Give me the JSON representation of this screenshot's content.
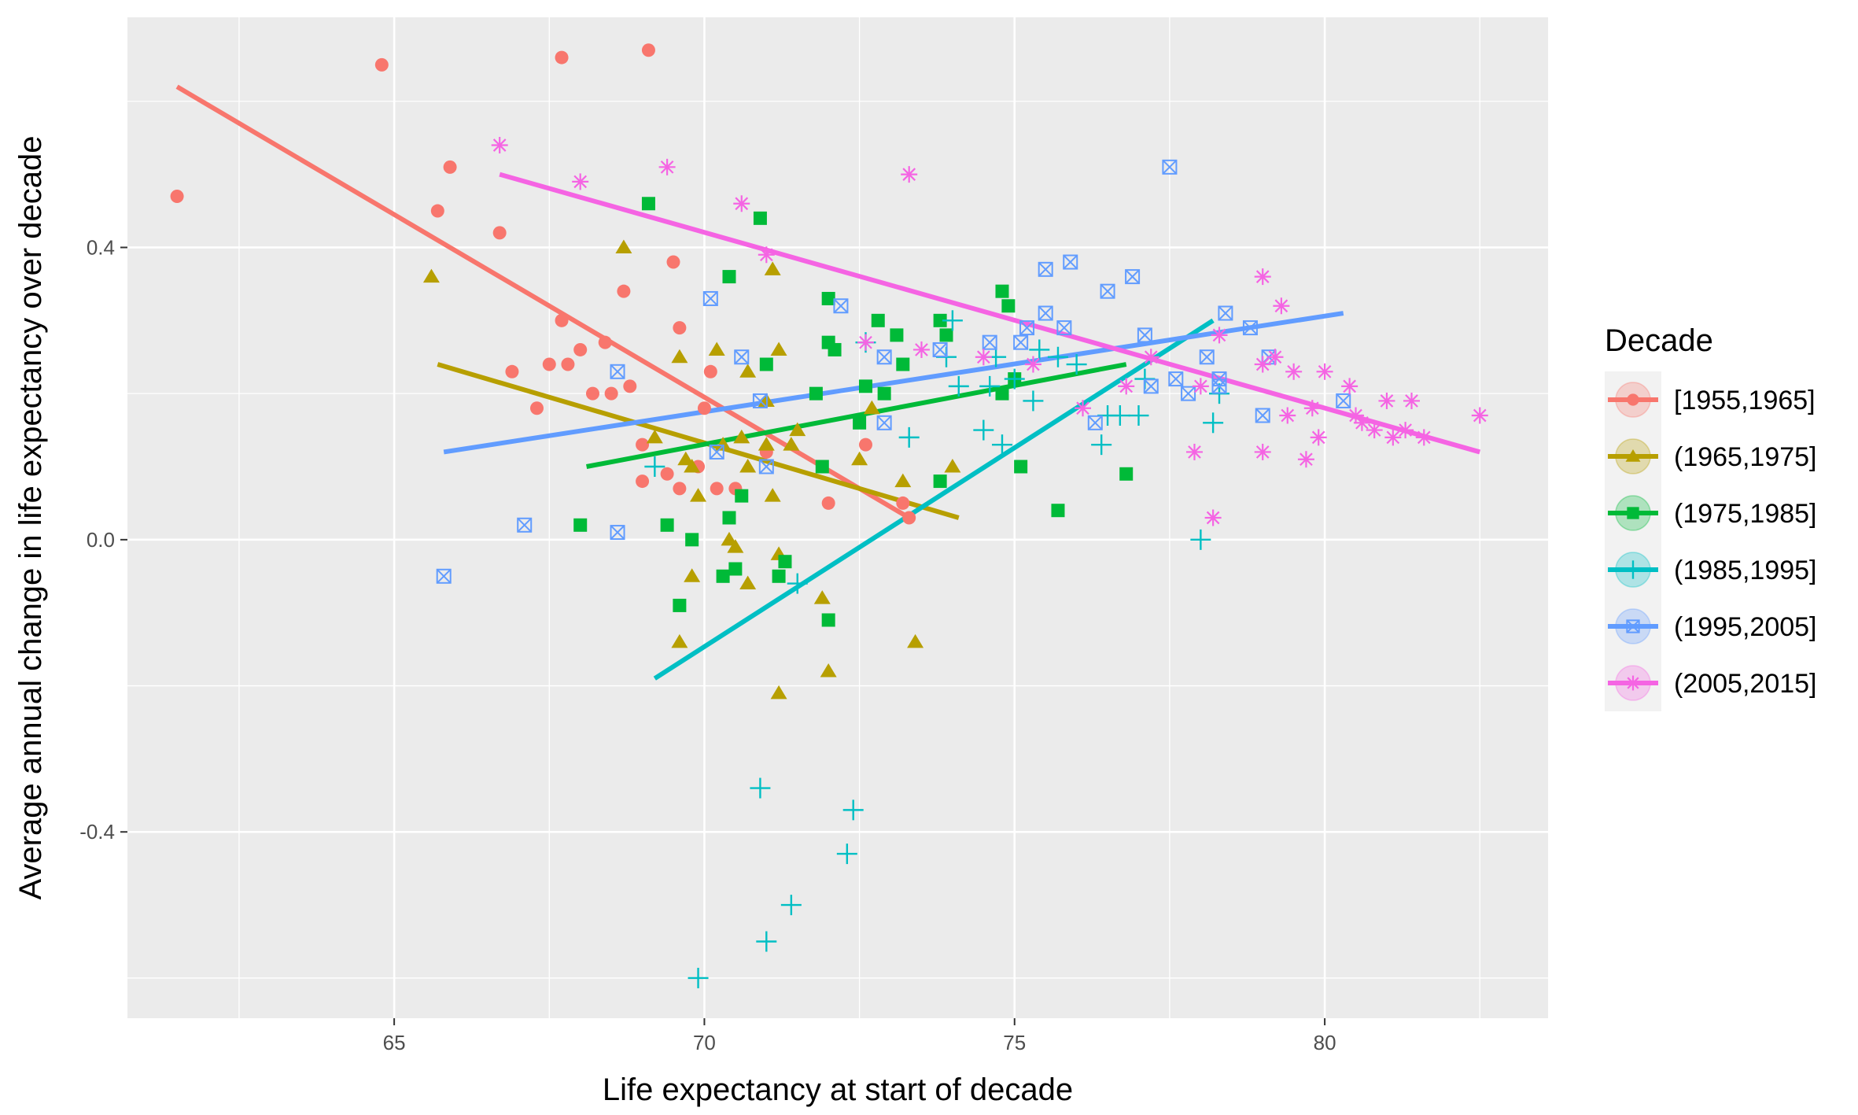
{
  "chart_data": {
    "type": "scatter",
    "xlabel": "Life expectancy at start of decade",
    "ylabel": "Average annual change in life expectancy over decade",
    "xlim": [
      60.7,
      83.6
    ],
    "ylim": [
      -0.655,
      0.715
    ],
    "x_ticks": [
      65,
      70,
      75,
      80
    ],
    "x_tick_labels": [
      "65",
      "70",
      "75",
      "80"
    ],
    "y_ticks": [
      -0.4,
      0.0,
      0.4
    ],
    "y_tick_labels": [
      "-0.4",
      "0.0",
      "0.4"
    ],
    "grid": true,
    "legend": {
      "title": "Decade",
      "position": "right"
    },
    "series": [
      {
        "name": "[1955,1965]",
        "color": "#F8766D",
        "marker": "circle",
        "trend": [
          [
            61.5,
            0.62
          ],
          [
            73.3,
            0.03
          ]
        ],
        "points": [
          [
            61.5,
            0.47
          ],
          [
            64.8,
            0.65
          ],
          [
            65.7,
            0.45
          ],
          [
            65.9,
            0.51
          ],
          [
            66.7,
            0.42
          ],
          [
            66.9,
            0.23
          ],
          [
            67.3,
            0.18
          ],
          [
            67.5,
            0.24
          ],
          [
            67.7,
            0.3
          ],
          [
            67.8,
            0.24
          ],
          [
            68.0,
            0.26
          ],
          [
            68.2,
            0.2
          ],
          [
            68.4,
            0.27
          ],
          [
            68.5,
            0.2
          ],
          [
            68.7,
            0.34
          ],
          [
            68.8,
            0.21
          ],
          [
            69.0,
            0.13
          ],
          [
            69.0,
            0.08
          ],
          [
            69.1,
            0.67
          ],
          [
            69.4,
            0.09
          ],
          [
            69.5,
            0.38
          ],
          [
            69.6,
            0.29
          ],
          [
            69.6,
            0.07
          ],
          [
            69.9,
            0.1
          ],
          [
            70.0,
            0.18
          ],
          [
            70.1,
            0.23
          ],
          [
            70.2,
            0.07
          ],
          [
            70.5,
            0.07
          ],
          [
            71.0,
            0.12
          ],
          [
            72.0,
            0.05
          ],
          [
            72.6,
            0.13
          ],
          [
            73.2,
            0.05
          ],
          [
            73.3,
            0.03
          ],
          [
            67.7,
            0.66
          ]
        ]
      },
      {
        "name": "(1965,1975]",
        "color": "#B79F00",
        "marker": "triangle",
        "trend": [
          [
            65.7,
            0.24
          ],
          [
            74.1,
            0.03
          ]
        ],
        "points": [
          [
            65.6,
            0.36
          ],
          [
            68.7,
            0.4
          ],
          [
            69.2,
            0.14
          ],
          [
            69.6,
            0.25
          ],
          [
            69.7,
            0.11
          ],
          [
            69.8,
            0.1
          ],
          [
            69.9,
            0.06
          ],
          [
            70.2,
            0.26
          ],
          [
            70.3,
            0.13
          ],
          [
            70.4,
            0.0
          ],
          [
            70.5,
            -0.01
          ],
          [
            70.6,
            0.14
          ],
          [
            70.7,
            0.1
          ],
          [
            70.7,
            0.23
          ],
          [
            70.7,
            -0.06
          ],
          [
            71.0,
            0.13
          ],
          [
            71.0,
            0.19
          ],
          [
            71.1,
            0.37
          ],
          [
            71.1,
            0.06
          ],
          [
            71.2,
            0.26
          ],
          [
            71.2,
            -0.21
          ],
          [
            71.2,
            -0.02
          ],
          [
            71.4,
            0.13
          ],
          [
            71.5,
            0.15
          ],
          [
            71.9,
            -0.08
          ],
          [
            72.0,
            -0.18
          ],
          [
            72.5,
            0.11
          ],
          [
            72.7,
            0.18
          ],
          [
            73.2,
            0.08
          ],
          [
            73.4,
            -0.14
          ],
          [
            74.0,
            0.1
          ],
          [
            69.6,
            -0.14
          ],
          [
            69.8,
            -0.05
          ]
        ]
      },
      {
        "name": "(1975,1985]",
        "color": "#00BA38",
        "marker": "square",
        "trend": [
          [
            68.1,
            0.1
          ],
          [
            76.8,
            0.24
          ]
        ],
        "points": [
          [
            68.0,
            0.02
          ],
          [
            69.1,
            0.46
          ],
          [
            69.4,
            0.02
          ],
          [
            69.6,
            -0.09
          ],
          [
            69.8,
            0.0
          ],
          [
            70.3,
            -0.05
          ],
          [
            70.4,
            0.36
          ],
          [
            70.4,
            0.03
          ],
          [
            70.6,
            0.06
          ],
          [
            70.9,
            0.44
          ],
          [
            71.0,
            0.24
          ],
          [
            71.2,
            -0.05
          ],
          [
            71.3,
            -0.03
          ],
          [
            71.8,
            0.2
          ],
          [
            71.9,
            0.1
          ],
          [
            72.0,
            0.27
          ],
          [
            72.0,
            0.33
          ],
          [
            72.0,
            -0.11
          ],
          [
            72.1,
            0.26
          ],
          [
            72.5,
            0.16
          ],
          [
            72.6,
            0.21
          ],
          [
            72.8,
            0.3
          ],
          [
            72.9,
            0.2
          ],
          [
            73.1,
            0.28
          ],
          [
            73.2,
            0.24
          ],
          [
            73.8,
            0.3
          ],
          [
            73.8,
            0.08
          ],
          [
            73.9,
            0.28
          ],
          [
            74.8,
            0.34
          ],
          [
            74.8,
            0.2
          ],
          [
            74.9,
            0.32
          ],
          [
            75.0,
            0.22
          ],
          [
            75.1,
            0.1
          ],
          [
            75.7,
            0.04
          ],
          [
            76.8,
            0.09
          ],
          [
            70.5,
            -0.04
          ]
        ]
      },
      {
        "name": "(1985,1995]",
        "color": "#00BFC4",
        "marker": "plus",
        "trend": [
          [
            69.2,
            -0.19
          ],
          [
            78.2,
            0.3
          ]
        ],
        "points": [
          [
            69.2,
            0.1
          ],
          [
            69.9,
            -0.6
          ],
          [
            70.9,
            -0.34
          ],
          [
            71.0,
            -0.55
          ],
          [
            71.4,
            -0.5
          ],
          [
            71.5,
            -0.06
          ],
          [
            72.3,
            -0.43
          ],
          [
            72.4,
            -0.37
          ],
          [
            72.6,
            0.27
          ],
          [
            73.3,
            0.14
          ],
          [
            73.9,
            0.25
          ],
          [
            74.0,
            0.3
          ],
          [
            74.1,
            0.21
          ],
          [
            74.5,
            0.15
          ],
          [
            74.6,
            0.21
          ],
          [
            74.7,
            0.25
          ],
          [
            74.8,
            0.13
          ],
          [
            75.0,
            0.22
          ],
          [
            75.3,
            0.19
          ],
          [
            75.4,
            0.26
          ],
          [
            75.7,
            0.25
          ],
          [
            76.0,
            0.24
          ],
          [
            76.4,
            0.13
          ],
          [
            76.5,
            0.17
          ],
          [
            76.7,
            0.17
          ],
          [
            77.0,
            0.17
          ],
          [
            77.1,
            0.22
          ],
          [
            78.0,
            0.0
          ],
          [
            78.2,
            0.16
          ],
          [
            78.3,
            0.2
          ]
        ]
      },
      {
        "name": "(1995,2005]",
        "color": "#619CFF",
        "marker": "square-x",
        "trend": [
          [
            65.8,
            0.12
          ],
          [
            80.3,
            0.31
          ]
        ],
        "points": [
          [
            65.8,
            -0.05
          ],
          [
            67.1,
            0.02
          ],
          [
            68.6,
            0.01
          ],
          [
            68.6,
            0.23
          ],
          [
            70.1,
            0.33
          ],
          [
            70.2,
            0.12
          ],
          [
            70.6,
            0.25
          ],
          [
            70.9,
            0.19
          ],
          [
            71.0,
            0.1
          ],
          [
            72.2,
            0.32
          ],
          [
            72.9,
            0.16
          ],
          [
            72.9,
            0.25
          ],
          [
            73.8,
            0.26
          ],
          [
            74.6,
            0.27
          ],
          [
            75.1,
            0.27
          ],
          [
            75.2,
            0.29
          ],
          [
            75.5,
            0.37
          ],
          [
            75.5,
            0.31
          ],
          [
            75.8,
            0.29
          ],
          [
            75.9,
            0.38
          ],
          [
            76.3,
            0.16
          ],
          [
            76.5,
            0.34
          ],
          [
            76.9,
            0.36
          ],
          [
            77.1,
            0.28
          ],
          [
            77.2,
            0.21
          ],
          [
            77.5,
            0.51
          ],
          [
            77.6,
            0.22
          ],
          [
            77.8,
            0.2
          ],
          [
            78.1,
            0.25
          ],
          [
            78.3,
            0.22
          ],
          [
            78.4,
            0.31
          ],
          [
            78.8,
            0.29
          ],
          [
            79.1,
            0.25
          ],
          [
            80.3,
            0.19
          ],
          [
            78.3,
            0.21
          ],
          [
            79.0,
            0.17
          ]
        ]
      },
      {
        "name": "(2005,2015]",
        "color": "#F564E3",
        "marker": "star",
        "trend": [
          [
            66.7,
            0.5
          ],
          [
            82.5,
            0.12
          ]
        ],
        "points": [
          [
            66.7,
            0.54
          ],
          [
            68.0,
            0.49
          ],
          [
            69.4,
            0.51
          ],
          [
            70.6,
            0.46
          ],
          [
            71.0,
            0.39
          ],
          [
            72.6,
            0.27
          ],
          [
            73.3,
            0.5
          ],
          [
            73.5,
            0.26
          ],
          [
            74.5,
            0.25
          ],
          [
            75.3,
            0.24
          ],
          [
            76.1,
            0.18
          ],
          [
            76.8,
            0.21
          ],
          [
            77.2,
            0.25
          ],
          [
            77.9,
            0.12
          ],
          [
            78.0,
            0.21
          ],
          [
            78.2,
            0.03
          ],
          [
            78.3,
            0.28
          ],
          [
            79.0,
            0.36
          ],
          [
            79.0,
            0.24
          ],
          [
            79.0,
            0.12
          ],
          [
            79.2,
            0.25
          ],
          [
            79.3,
            0.32
          ],
          [
            79.4,
            0.17
          ],
          [
            79.5,
            0.23
          ],
          [
            79.7,
            0.11
          ],
          [
            79.8,
            0.18
          ],
          [
            79.9,
            0.14
          ],
          [
            80.0,
            0.23
          ],
          [
            80.4,
            0.21
          ],
          [
            80.5,
            0.17
          ],
          [
            80.6,
            0.16
          ],
          [
            80.8,
            0.15
          ],
          [
            81.0,
            0.19
          ],
          [
            81.1,
            0.14
          ],
          [
            81.3,
            0.15
          ],
          [
            81.4,
            0.19
          ],
          [
            81.6,
            0.14
          ],
          [
            82.5,
            0.17
          ]
        ]
      }
    ]
  }
}
